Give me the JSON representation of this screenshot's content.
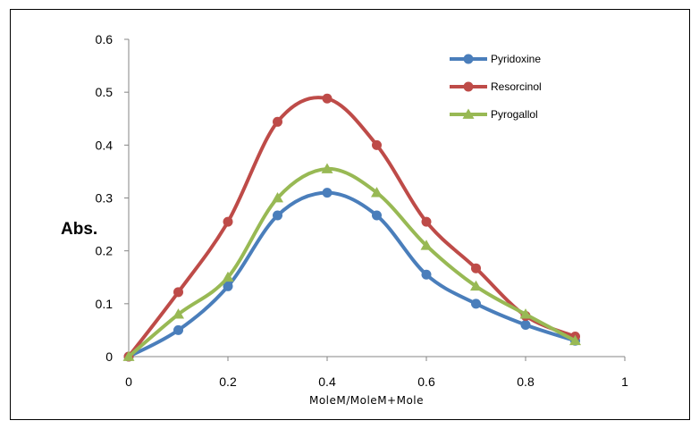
{
  "chart_data": {
    "type": "line",
    "title": "",
    "xlabel": "MoleM/MoleM+Mole",
    "ylabel": "Abs.",
    "xlim": [
      0,
      1
    ],
    "ylim": [
      0,
      0.6
    ],
    "xticks": [
      "0",
      "0.2",
      "0.4",
      "0.6",
      "0.8",
      "1"
    ],
    "yticks": [
      "0",
      "0.1",
      "0.2",
      "0.3",
      "0.4",
      "0.5",
      "0.6"
    ],
    "x": [
      0,
      0.1,
      0.2,
      0.3,
      0.4,
      0.5,
      0.6,
      0.7,
      0.8,
      0.9
    ],
    "grid": false,
    "legend_position": "top-right",
    "series": [
      {
        "name": "Pyridoxine",
        "color": "#4a7ebb",
        "marker": "circle",
        "values": [
          0,
          0.05,
          0.133,
          0.267,
          0.31,
          0.267,
          0.155,
          0.1,
          0.06,
          0.03
        ]
      },
      {
        "name": "Resorcinol",
        "color": "#be4b48",
        "marker": "circle",
        "values": [
          0,
          0.122,
          0.255,
          0.444,
          0.488,
          0.4,
          0.255,
          0.167,
          0.077,
          0.038
        ]
      },
      {
        "name": "Pyrogallol",
        "color": "#98b954",
        "marker": "triangle",
        "values": [
          0,
          0.08,
          0.15,
          0.3,
          0.355,
          0.31,
          0.21,
          0.133,
          0.08,
          0.03
        ]
      }
    ]
  }
}
